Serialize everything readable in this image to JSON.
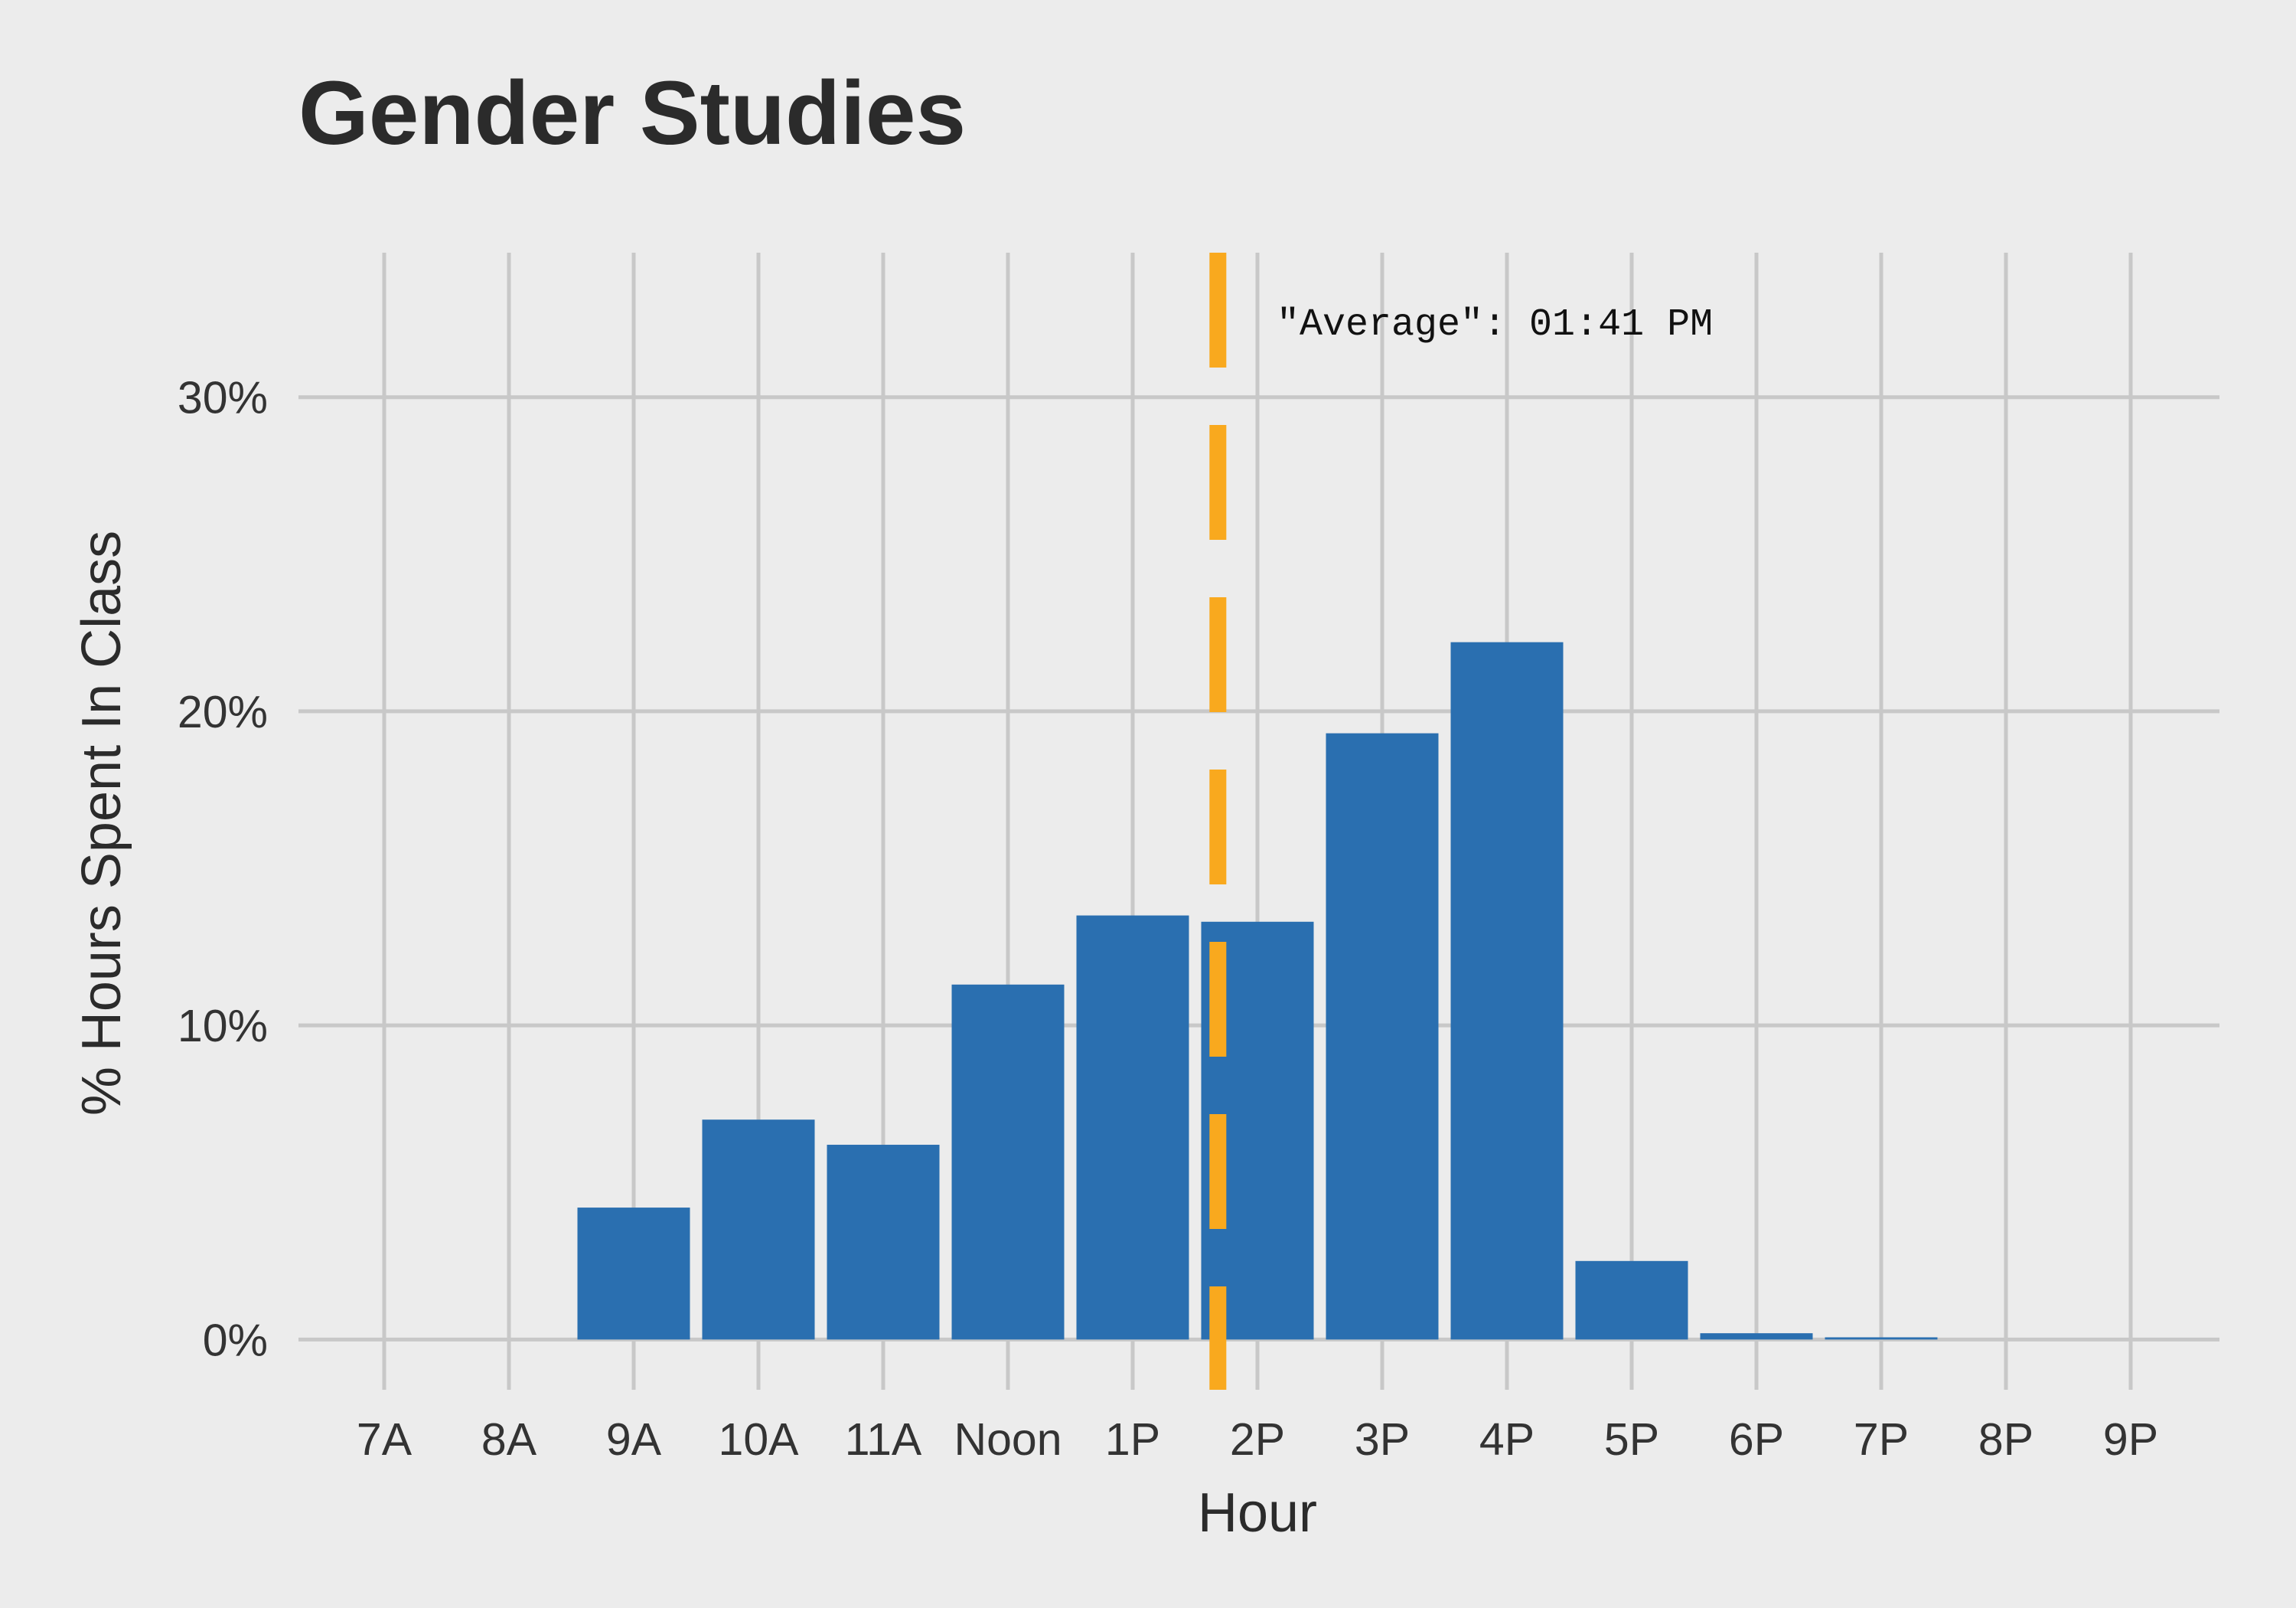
{
  "chart_data": {
    "type": "bar",
    "title": "Gender Studies",
    "xlabel": "Hour",
    "ylabel": "% Hours Spent In Class",
    "categories": [
      "7A",
      "8A",
      "9A",
      "10A",
      "11A",
      "Noon",
      "1P",
      "2P",
      "3P",
      "4P",
      "5P",
      "6P",
      "7P",
      "8P",
      "9P"
    ],
    "values": [
      0,
      0,
      4.2,
      7.0,
      6.2,
      11.3,
      13.5,
      13.3,
      19.3,
      22.2,
      2.5,
      0.2,
      0.07,
      0,
      0
    ],
    "y_ticks": [
      0,
      10,
      20,
      30
    ],
    "y_tick_labels": [
      "0%",
      "10%",
      "20%",
      "30%"
    ],
    "ylim": [
      -1.6,
      34.6
    ],
    "grid": true,
    "reference_line": {
      "x_value": 13.683,
      "label": "\"Average\": 01:41 PM",
      "color": "#f9a91e",
      "style": "dashed"
    },
    "colors": {
      "bar": "#2a6fb0",
      "background": "#ececec",
      "grid": "#c8c8c8"
    }
  }
}
